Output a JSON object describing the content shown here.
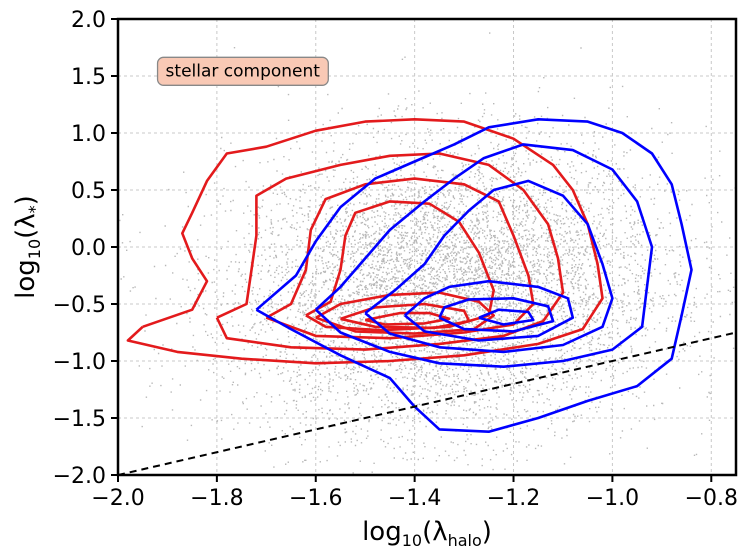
{
  "chart_data": {
    "type": "scatter",
    "title": "",
    "xlabel": "log10(λhalo)",
    "ylabel": "log10(λ*)",
    "xlabel_parts": {
      "prefix": "log",
      "sub": "10",
      "open": "(λ",
      "var_sub": "halo",
      "close": ")"
    },
    "ylabel_parts": {
      "prefix": "log",
      "sub": "10",
      "open": "(λ",
      "var_sub": "*",
      "close": ")"
    },
    "xlim": [
      -2.0,
      -0.75
    ],
    "ylim": [
      -2.0,
      2.0
    ],
    "xticks": [
      -2.0,
      -1.8,
      -1.6,
      -1.4,
      -1.2,
      -1.0,
      -0.8
    ],
    "xtick_labels": [
      "−2.0",
      "−1.8",
      "−1.6",
      "−1.4",
      "−1.2",
      "−1.0",
      "−0.8"
    ],
    "yticks": [
      -2.0,
      -1.5,
      -1.0,
      -0.5,
      0.0,
      0.5,
      1.0,
      1.5,
      2.0
    ],
    "ytick_labels": [
      "−2.0",
      "−1.5",
      "−1.0",
      "−0.5",
      "0.0",
      "0.5",
      "1.0",
      "1.5",
      "2.0"
    ],
    "grid": true,
    "annotation": {
      "text": "stellar component",
      "x": -1.92,
      "y": 1.55,
      "facecolor": "#f9c9b5",
      "edgecolor": "#888888"
    },
    "scatter": {
      "color": "#b8b8b8",
      "n_points": 9000,
      "center_x": -1.33,
      "center_y": -0.35,
      "sigma_x": 0.22,
      "sigma_y": 0.62,
      "corr": 0.08
    },
    "reference_line": {
      "style": "dashed",
      "color": "#000000",
      "points": [
        [
          -2.0,
          -2.0
        ],
        [
          -0.75,
          -0.75
        ]
      ]
    },
    "series": [
      {
        "name": "red contours",
        "color": "#e31a1c",
        "contours": [
          [
            [
              -1.95,
              -0.7
            ],
            [
              -1.85,
              -0.55
            ],
            [
              -1.82,
              -0.3
            ],
            [
              -1.85,
              -0.1
            ],
            [
              -1.87,
              0.12
            ],
            [
              -1.85,
              0.3
            ],
            [
              -1.82,
              0.58
            ],
            [
              -1.78,
              0.82
            ],
            [
              -1.7,
              0.88
            ],
            [
              -1.6,
              1.02
            ],
            [
              -1.5,
              1.1
            ],
            [
              -1.4,
              1.12
            ],
            [
              -1.3,
              1.1
            ],
            [
              -1.2,
              0.95
            ],
            [
              -1.12,
              0.72
            ],
            [
              -1.08,
              0.5
            ],
            [
              -1.05,
              0.2
            ],
            [
              -1.03,
              -0.15
            ],
            [
              -1.02,
              -0.45
            ],
            [
              -1.06,
              -0.72
            ],
            [
              -1.15,
              -0.85
            ],
            [
              -1.3,
              -0.95
            ],
            [
              -1.45,
              -1.0
            ],
            [
              -1.6,
              -1.02
            ],
            [
              -1.75,
              -0.98
            ],
            [
              -1.88,
              -0.92
            ],
            [
              -1.98,
              -0.82
            ],
            [
              -1.95,
              -0.7
            ]
          ],
          [
            [
              -1.8,
              -0.62
            ],
            [
              -1.74,
              -0.5
            ],
            [
              -1.73,
              -0.2
            ],
            [
              -1.72,
              0.1
            ],
            [
              -1.72,
              0.45
            ],
            [
              -1.66,
              0.6
            ],
            [
              -1.55,
              0.72
            ],
            [
              -1.45,
              0.8
            ],
            [
              -1.35,
              0.82
            ],
            [
              -1.25,
              0.72
            ],
            [
              -1.18,
              0.5
            ],
            [
              -1.13,
              0.2
            ],
            [
              -1.11,
              -0.1
            ],
            [
              -1.1,
              -0.4
            ],
            [
              -1.14,
              -0.65
            ],
            [
              -1.22,
              -0.78
            ],
            [
              -1.35,
              -0.85
            ],
            [
              -1.5,
              -0.9
            ],
            [
              -1.65,
              -0.88
            ],
            [
              -1.78,
              -0.8
            ],
            [
              -1.8,
              -0.62
            ]
          ],
          [
            [
              -1.7,
              -0.62
            ],
            [
              -1.65,
              -0.5
            ],
            [
              -1.62,
              -0.2
            ],
            [
              -1.61,
              0.15
            ],
            [
              -1.58,
              0.42
            ],
            [
              -1.5,
              0.55
            ],
            [
              -1.4,
              0.6
            ],
            [
              -1.3,
              0.55
            ],
            [
              -1.23,
              0.4
            ],
            [
              -1.2,
              0.1
            ],
            [
              -1.17,
              -0.25
            ],
            [
              -1.16,
              -0.5
            ],
            [
              -1.2,
              -0.68
            ],
            [
              -1.3,
              -0.75
            ],
            [
              -1.45,
              -0.8
            ],
            [
              -1.6,
              -0.78
            ],
            [
              -1.7,
              -0.62
            ]
          ],
          [
            [
              -1.62,
              -0.6
            ],
            [
              -1.57,
              -0.48
            ],
            [
              -1.55,
              -0.2
            ],
            [
              -1.54,
              0.1
            ],
            [
              -1.52,
              0.3
            ],
            [
              -1.45,
              0.4
            ],
            [
              -1.37,
              0.38
            ],
            [
              -1.31,
              0.22
            ],
            [
              -1.27,
              -0.05
            ],
            [
              -1.24,
              -0.38
            ],
            [
              -1.25,
              -0.6
            ],
            [
              -1.33,
              -0.7
            ],
            [
              -1.47,
              -0.73
            ],
            [
              -1.58,
              -0.7
            ],
            [
              -1.62,
              -0.6
            ]
          ],
          [
            [
              -1.6,
              -0.62
            ],
            [
              -1.55,
              -0.5
            ],
            [
              -1.45,
              -0.42
            ],
            [
              -1.35,
              -0.4
            ],
            [
              -1.27,
              -0.48
            ],
            [
              -1.24,
              -0.6
            ],
            [
              -1.28,
              -0.72
            ],
            [
              -1.4,
              -0.76
            ],
            [
              -1.52,
              -0.74
            ],
            [
              -1.6,
              -0.62
            ]
          ],
          [
            [
              -1.55,
              -0.63
            ],
            [
              -1.48,
              -0.53
            ],
            [
              -1.38,
              -0.5
            ],
            [
              -1.3,
              -0.56
            ],
            [
              -1.29,
              -0.65
            ],
            [
              -1.36,
              -0.71
            ],
            [
              -1.48,
              -0.7
            ],
            [
              -1.55,
              -0.63
            ]
          ],
          [
            [
              -1.5,
              -0.64
            ],
            [
              -1.43,
              -0.58
            ],
            [
              -1.37,
              -0.58
            ],
            [
              -1.33,
              -0.63
            ],
            [
              -1.38,
              -0.67
            ],
            [
              -1.46,
              -0.68
            ],
            [
              -1.5,
              -0.64
            ]
          ]
        ]
      },
      {
        "name": "blue contours",
        "color": "#0000ff",
        "contours": [
          [
            [
              -1.72,
              -0.55
            ],
            [
              -1.65,
              -0.72
            ],
            [
              -1.55,
              -0.95
            ],
            [
              -1.45,
              -1.15
            ],
            [
              -1.4,
              -1.4
            ],
            [
              -1.35,
              -1.6
            ],
            [
              -1.25,
              -1.62
            ],
            [
              -1.15,
              -1.5
            ],
            [
              -1.05,
              -1.35
            ],
            [
              -0.95,
              -1.22
            ],
            [
              -0.88,
              -0.98
            ],
            [
              -0.86,
              -0.6
            ],
            [
              -0.84,
              -0.2
            ],
            [
              -0.86,
              0.2
            ],
            [
              -0.88,
              0.55
            ],
            [
              -0.92,
              0.82
            ],
            [
              -0.98,
              1.0
            ],
            [
              -1.05,
              1.1
            ],
            [
              -1.15,
              1.12
            ],
            [
              -1.25,
              1.05
            ],
            [
              -1.32,
              0.9
            ],
            [
              -1.4,
              0.75
            ],
            [
              -1.48,
              0.6
            ],
            [
              -1.55,
              0.35
            ],
            [
              -1.6,
              0.05
            ],
            [
              -1.64,
              -0.25
            ],
            [
              -1.72,
              -0.55
            ]
          ],
          [
            [
              -1.6,
              -0.55
            ],
            [
              -1.55,
              -0.75
            ],
            [
              -1.45,
              -0.92
            ],
            [
              -1.35,
              -1.02
            ],
            [
              -1.22,
              -1.05
            ],
            [
              -1.1,
              -1.0
            ],
            [
              -1.0,
              -0.9
            ],
            [
              -0.94,
              -0.7
            ],
            [
              -0.93,
              -0.35
            ],
            [
              -0.92,
              0.0
            ],
            [
              -0.95,
              0.4
            ],
            [
              -1.0,
              0.68
            ],
            [
              -1.08,
              0.85
            ],
            [
              -1.18,
              0.9
            ],
            [
              -1.26,
              0.78
            ],
            [
              -1.32,
              0.6
            ],
            [
              -1.38,
              0.4
            ],
            [
              -1.45,
              0.15
            ],
            [
              -1.5,
              -0.1
            ],
            [
              -1.55,
              -0.35
            ],
            [
              -1.6,
              -0.55
            ]
          ],
          [
            [
              -1.5,
              -0.58
            ],
            [
              -1.45,
              -0.76
            ],
            [
              -1.35,
              -0.88
            ],
            [
              -1.22,
              -0.92
            ],
            [
              -1.1,
              -0.86
            ],
            [
              -1.02,
              -0.7
            ],
            [
              -1.0,
              -0.45
            ],
            [
              -1.02,
              -0.15
            ],
            [
              -1.05,
              0.2
            ],
            [
              -1.1,
              0.45
            ],
            [
              -1.17,
              0.58
            ],
            [
              -1.24,
              0.5
            ],
            [
              -1.29,
              0.32
            ],
            [
              -1.34,
              0.1
            ],
            [
              -1.38,
              -0.15
            ],
            [
              -1.44,
              -0.38
            ],
            [
              -1.5,
              -0.58
            ]
          ],
          [
            [
              -1.42,
              -0.6
            ],
            [
              -1.38,
              -0.74
            ],
            [
              -1.27,
              -0.82
            ],
            [
              -1.15,
              -0.78
            ],
            [
              -1.08,
              -0.62
            ],
            [
              -1.09,
              -0.45
            ],
            [
              -1.15,
              -0.35
            ],
            [
              -1.25,
              -0.3
            ],
            [
              -1.33,
              -0.35
            ],
            [
              -1.38,
              -0.45
            ],
            [
              -1.42,
              -0.6
            ]
          ],
          [
            [
              -1.35,
              -0.62
            ],
            [
              -1.3,
              -0.72
            ],
            [
              -1.2,
              -0.74
            ],
            [
              -1.12,
              -0.65
            ],
            [
              -1.13,
              -0.52
            ],
            [
              -1.2,
              -0.45
            ],
            [
              -1.29,
              -0.46
            ],
            [
              -1.34,
              -0.53
            ],
            [
              -1.35,
              -0.62
            ]
          ],
          [
            [
              -1.27,
              -0.62
            ],
            [
              -1.22,
              -0.68
            ],
            [
              -1.16,
              -0.64
            ],
            [
              -1.17,
              -0.57
            ],
            [
              -1.23,
              -0.55
            ],
            [
              -1.27,
              -0.62
            ]
          ]
        ]
      }
    ]
  }
}
